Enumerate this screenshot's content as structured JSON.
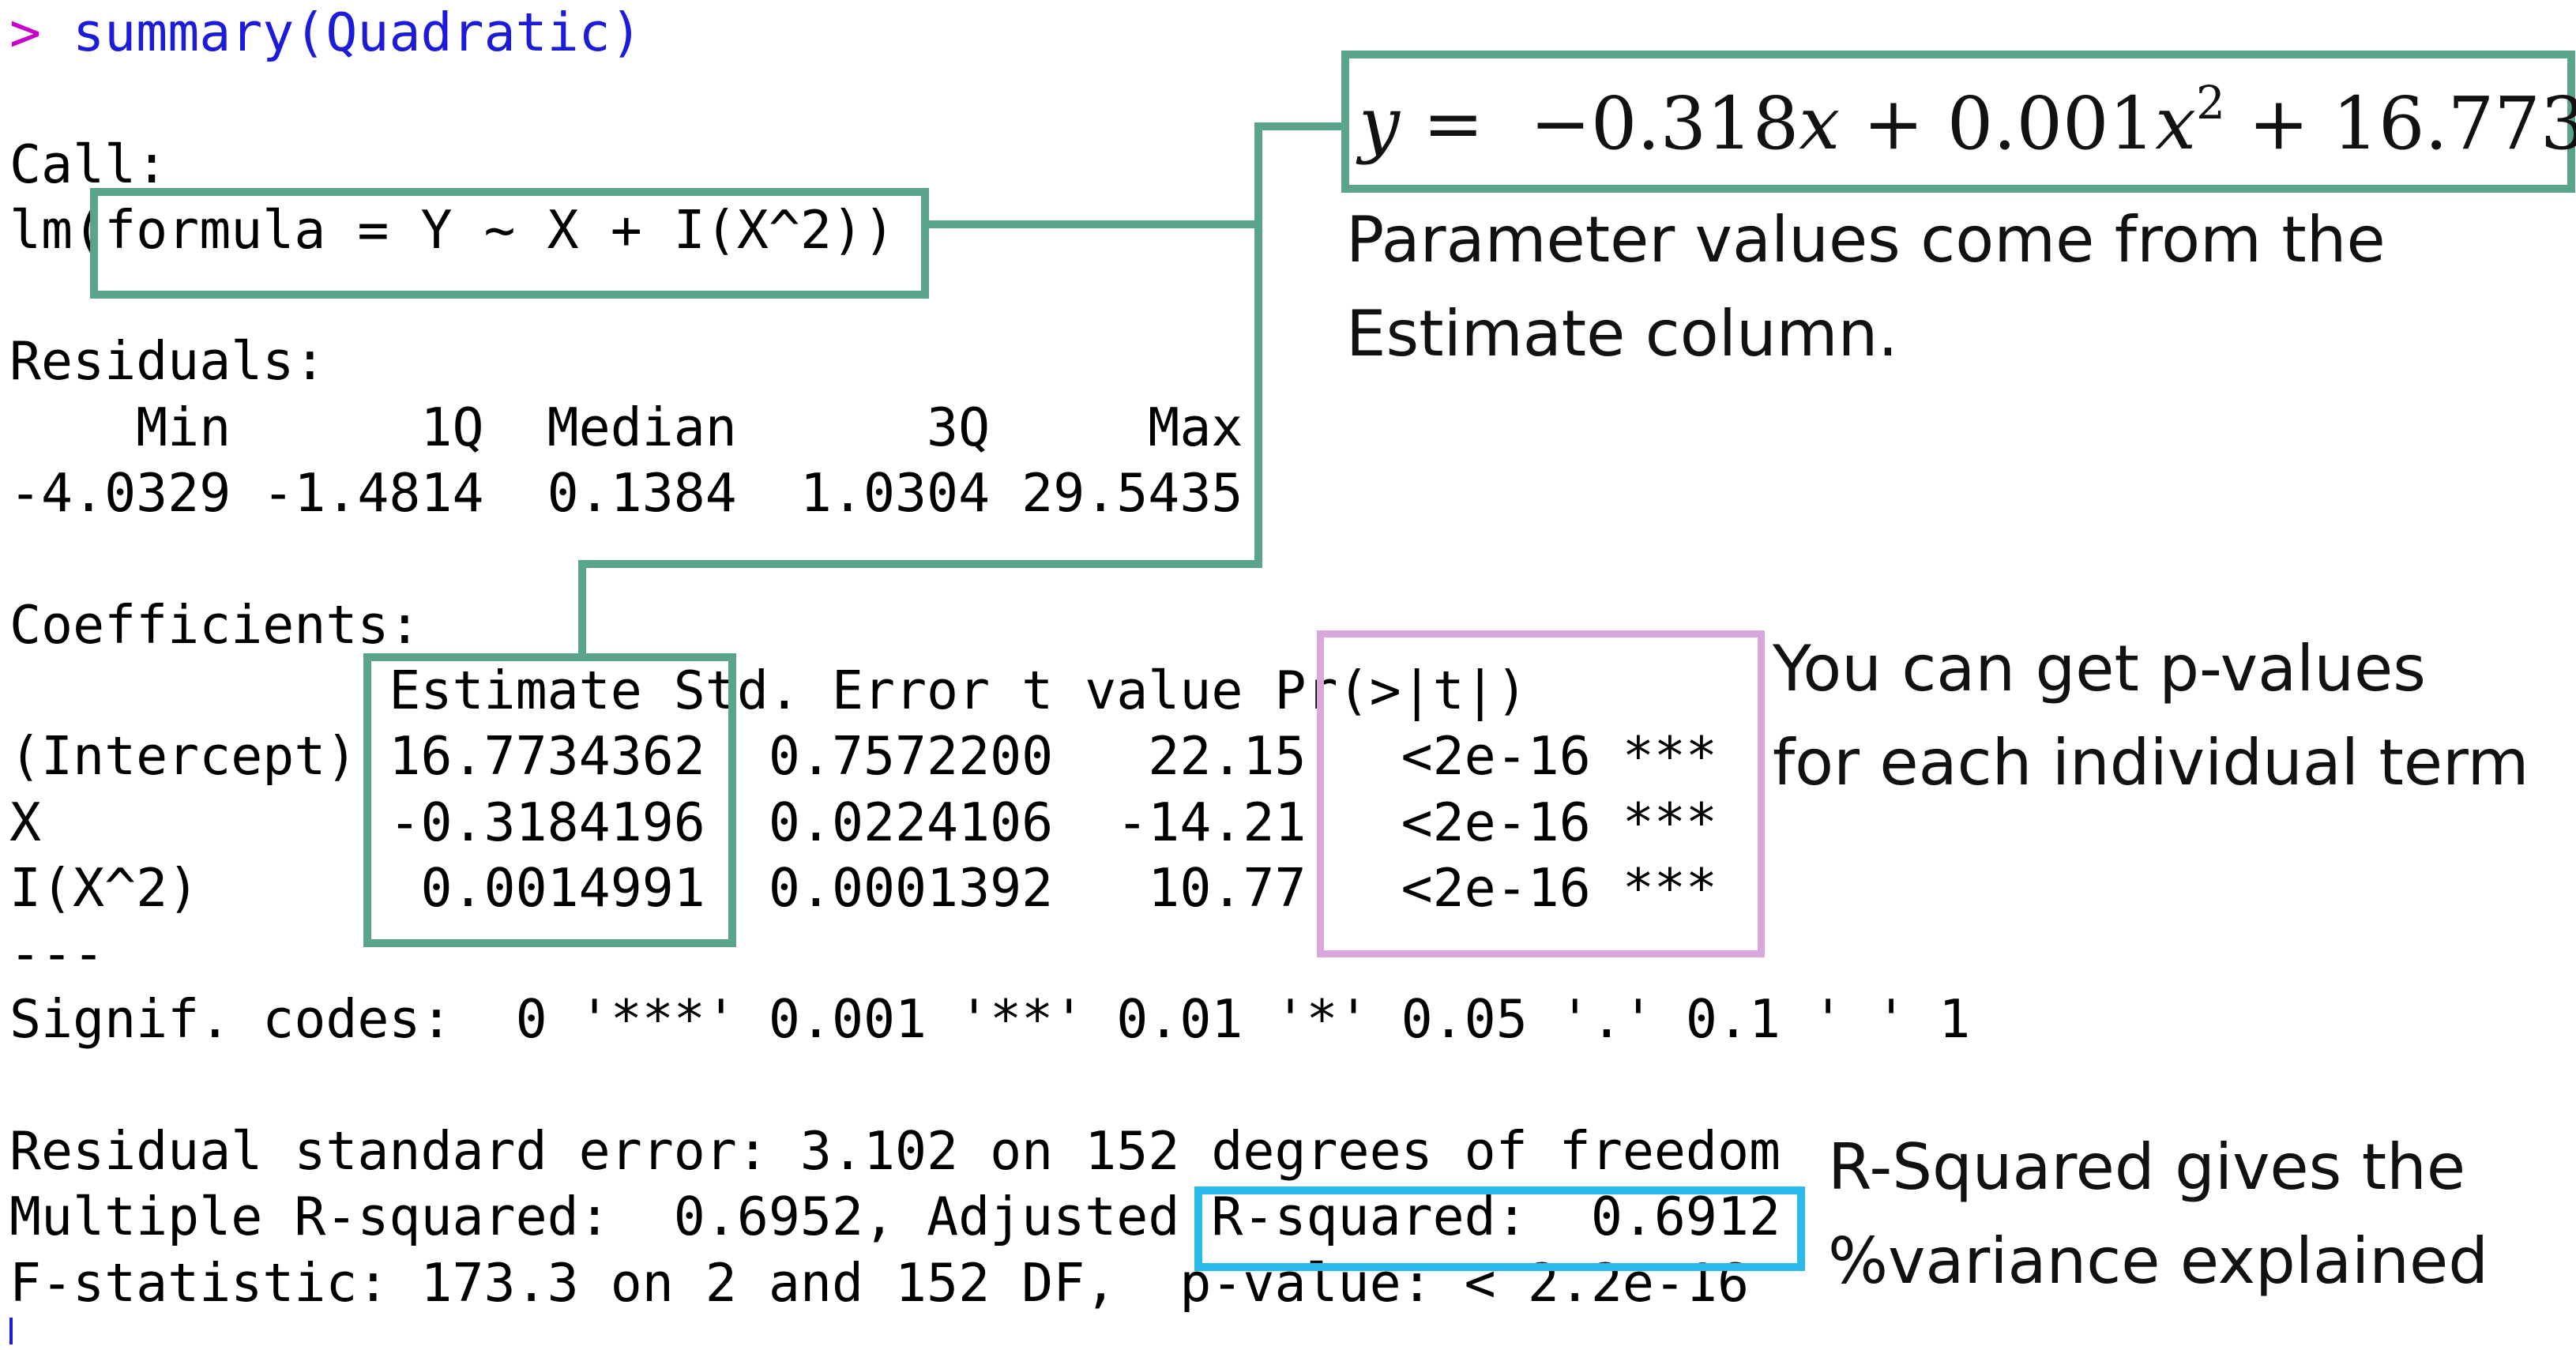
{
  "console": {
    "prompt_symbol": ">",
    "prompt_command": "summary(Quadratic)",
    "call_header": "Call:",
    "call_prefix": "lm(",
    "call_formula": "formula = Y ~ X + I(X^2))",
    "residuals_header": "Residuals:",
    "residuals_labels": "    Min      1Q  Median      3Q     Max ",
    "residuals_values": "-4.0329 -1.4814  0.1384  1.0304 29.5435 ",
    "coefficients_header": "Coefficients:",
    "coef_table_header": "            Estimate Std. Error t value Pr(>|t|)    ",
    "coef_rows": [
      "(Intercept) 16.7734362  0.7572200   22.15   <2e-16 ***",
      "X           -0.3184196  0.0224106  -14.21   <2e-16 ***",
      "I(X^2)       0.0014991  0.0001392   10.77   <2e-16 ***"
    ],
    "separator": "---",
    "signif_codes": "Signif. codes:  0 '***' 0.001 '**' 0.01 '*' 0.05 '.' 0.1 ' ' 1",
    "residual_se": "Residual standard error: 3.102 on 152 degrees of freedom",
    "multiple_r_squared": "Multiple R-squared:  0.6952,\tAdjusted R-squared:  0.6912 ",
    "f_statistic": "F-statistic: 173.3 on 2 and 152 DF,  p-value: < 2.2e-16"
  },
  "annotations": {
    "equation": {
      "y": "y",
      "eq": " =  −0.318",
      "x1": "x",
      "plus1": " + 0.001",
      "x2": "x",
      "exp": "2",
      "plus2": " + 16.773"
    },
    "parameter_note": "Parameter values come from the\nEstimate column.",
    "pvalue_note": "You can get p-values\nfor each individual term",
    "rsquared_note": "R-Squared gives the\n%variance explained"
  },
  "colors": {
    "green_box": "#5aa489",
    "pink_box": "#d9a7dc",
    "blue_box": "#29b9ea",
    "prompt_symbol": "#c800c8",
    "prompt_command": "#1c1cd8"
  }
}
